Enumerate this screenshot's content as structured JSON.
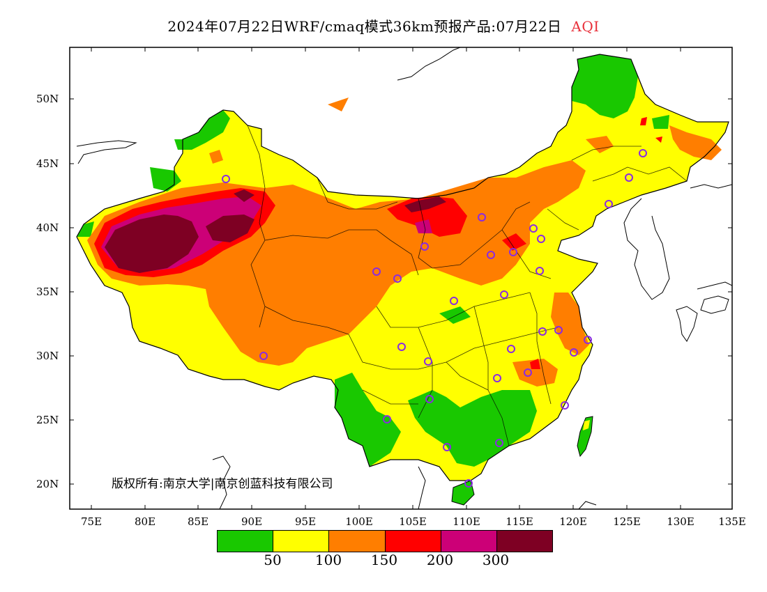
{
  "title": {
    "main": "2024年07月22日WRF/cmaq模式36km预报产品:07月22日",
    "variable": "AQI"
  },
  "map": {
    "lat_labels": [
      "50N",
      "45N",
      "40N",
      "35N",
      "30N",
      "25N",
      "20N"
    ],
    "lon_labels": [
      "75E",
      "80E",
      "85E",
      "90E",
      "95E",
      "100E",
      "105E",
      "110E",
      "115E",
      "120E",
      "125E",
      "130E",
      "135E"
    ]
  },
  "copyright": "版权所有:南京大学|南京创蓝科技有限公司",
  "legend": {
    "colors": [
      "#19c800",
      "#ffff00",
      "#ff7e00",
      "#ff0000",
      "#cc0077",
      "#7e0023"
    ],
    "labels": [
      "50",
      "100",
      "150",
      "200",
      "300"
    ]
  },
  "colors": {
    "good": "#19c800",
    "moderate": "#ffff00",
    "usg": "#ff7e00",
    "unhealthy": "#ff0000",
    "very_unhealthy": "#cc0077",
    "hazardous": "#7e0023",
    "station_marker": "#8a2be2"
  }
}
